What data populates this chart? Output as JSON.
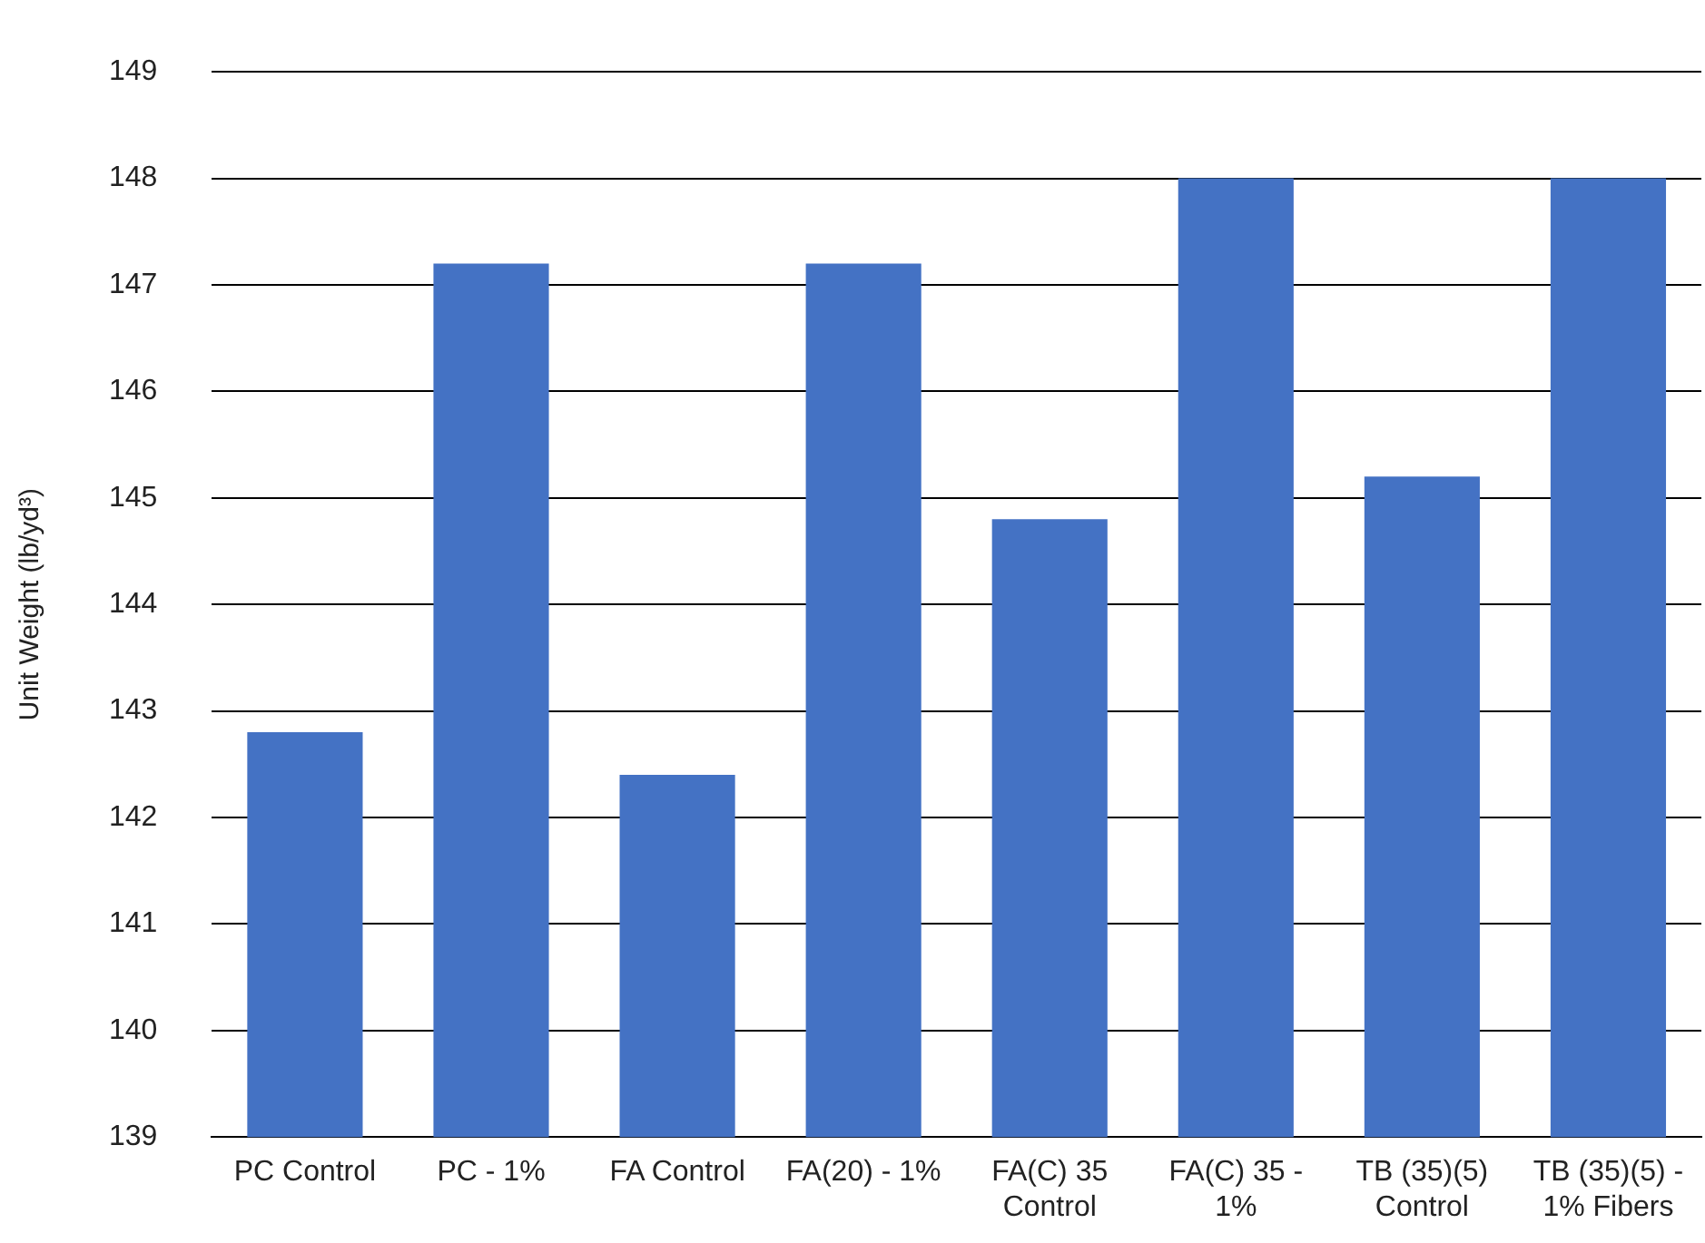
{
  "chart_data": {
    "type": "bar",
    "ylabel": "Unit Weight (lb/yd³)",
    "categories": [
      "PC Control",
      "PC - 1%",
      "FA Control",
      "FA(20) - 1%",
      "FA(C) 35 Control",
      "FA(C) 35 - 1%",
      "TB (35)(5) Control",
      "TB (35)(5) - 1% Fibers"
    ],
    "values": [
      142.8,
      147.2,
      142.4,
      147.2,
      144.8,
      148,
      145.2,
      148
    ],
    "color": "#4472c4",
    "ylim": [
      139,
      149
    ],
    "yticks": [
      139,
      140,
      141,
      142,
      143,
      144,
      145,
      146,
      147,
      148,
      149
    ],
    "grid": "y",
    "legend": false
  }
}
